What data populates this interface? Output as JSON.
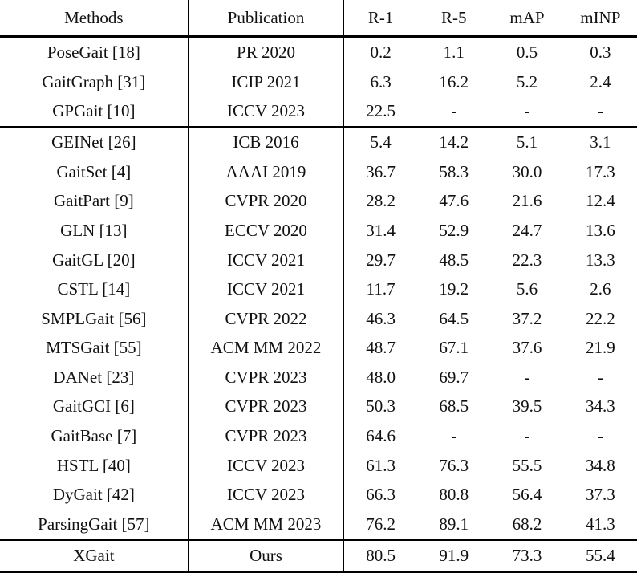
{
  "table": {
    "columns": [
      "Methods",
      "Publication",
      "R-1",
      "R-5",
      "mAP",
      "mINP"
    ],
    "sections": [
      {
        "rows": [
          [
            "PoseGait [18]",
            "PR 2020",
            "0.2",
            "1.1",
            "0.5",
            "0.3"
          ],
          [
            "GaitGraph [31]",
            "ICIP 2021",
            "6.3",
            "16.2",
            "5.2",
            "2.4"
          ],
          [
            "GPGait [10]",
            "ICCV 2023",
            "22.5",
            "-",
            "-",
            "-"
          ]
        ]
      },
      {
        "rows": [
          [
            "GEINet [26]",
            "ICB 2016",
            "5.4",
            "14.2",
            "5.1",
            "3.1"
          ],
          [
            "GaitSet [4]",
            "AAAI 2019",
            "36.7",
            "58.3",
            "30.0",
            "17.3"
          ],
          [
            "GaitPart [9]",
            "CVPR 2020",
            "28.2",
            "47.6",
            "21.6",
            "12.4"
          ],
          [
            "GLN [13]",
            "ECCV 2020",
            "31.4",
            "52.9",
            "24.7",
            "13.6"
          ],
          [
            "GaitGL [20]",
            "ICCV 2021",
            "29.7",
            "48.5",
            "22.3",
            "13.3"
          ],
          [
            "CSTL [14]",
            "ICCV 2021",
            "11.7",
            "19.2",
            "5.6",
            "2.6"
          ],
          [
            "SMPLGait [56]",
            "CVPR 2022",
            "46.3",
            "64.5",
            "37.2",
            "22.2"
          ],
          [
            "MTSGait [55]",
            "ACM MM 2022",
            "48.7",
            "67.1",
            "37.6",
            "21.9"
          ],
          [
            "DANet [23]",
            "CVPR 2023",
            "48.0",
            "69.7",
            "-",
            "-"
          ],
          [
            "GaitGCI [6]",
            "CVPR 2023",
            "50.3",
            "68.5",
            "39.5",
            "34.3"
          ],
          [
            "GaitBase [7]",
            "CVPR 2023",
            "64.6",
            "-",
            "-",
            "-"
          ],
          [
            "HSTL [40]",
            "ICCV 2023",
            "61.3",
            "76.3",
            "55.5",
            "34.8"
          ],
          [
            "DyGait [42]",
            "ICCV 2023",
            "66.3",
            "80.8",
            "56.4",
            "37.3"
          ],
          [
            "ParsingGait [57]",
            "ACM MM 2023",
            "76.2",
            "89.1",
            "68.2",
            "41.3"
          ]
        ]
      },
      {
        "bold_numbers": true,
        "rows": [
          [
            "XGait",
            "Ours",
            "80.5",
            "91.9",
            "73.3",
            "55.4"
          ]
        ]
      }
    ]
  }
}
